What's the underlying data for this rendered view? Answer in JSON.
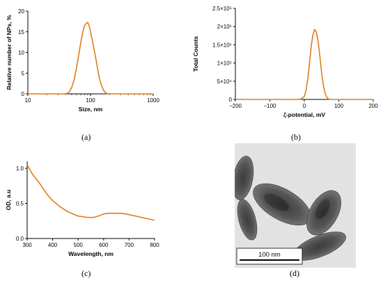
{
  "chart_data": [
    {
      "type": "line",
      "panel": "a",
      "caption": "(a)",
      "xlabel": "Size, nm",
      "ylabel": "Relative number of NPs, %",
      "xscale": "log",
      "xlim": [
        10,
        1000
      ],
      "ylim": [
        0,
        20
      ],
      "xticks": [
        "10",
        "100",
        "1000"
      ],
      "yticks": [
        "0",
        "5",
        "10",
        "15",
        "20"
      ],
      "color": "#e07b1c",
      "x": [
        10,
        30,
        40,
        45,
        50,
        55,
        60,
        65,
        70,
        75,
        80,
        85,
        90,
        95,
        100,
        110,
        120,
        130,
        140,
        150,
        160,
        170,
        180,
        200,
        300,
        1000
      ],
      "y": [
        0,
        0,
        0,
        0.3,
        1.5,
        3.5,
        6.5,
        9.5,
        12.5,
        14.8,
        16.5,
        17,
        17.3,
        16.5,
        15,
        12,
        9,
        6,
        3.5,
        2,
        1,
        0.4,
        0.1,
        0,
        0,
        0
      ]
    },
    {
      "type": "line",
      "panel": "b",
      "caption": "(b)",
      "xlabel": "ζ-potential, mV",
      "ylabel": "Total Counts",
      "xlim": [
        -200,
        200
      ],
      "ylim": [
        0,
        250000
      ],
      "xticks": [
        "−200",
        "−100",
        "0",
        "100",
        "200"
      ],
      "yticks": [
        "0",
        "5×10⁴",
        "1×10⁵",
        "1.5×10⁵",
        "2×10⁵",
        "2.5×10⁵"
      ],
      "color": "#e07b1c",
      "x": [
        -200,
        -20,
        -10,
        0,
        5,
        10,
        15,
        20,
        25,
        30,
        35,
        40,
        45,
        50,
        55,
        60,
        65,
        70,
        80,
        200
      ],
      "y": [
        0,
        0,
        1000,
        8000,
        25000,
        55000,
        100000,
        145000,
        178000,
        192000,
        185000,
        160000,
        120000,
        75000,
        40000,
        18000,
        6000,
        1000,
        0,
        0
      ]
    },
    {
      "type": "line",
      "panel": "c",
      "caption": "(c)",
      "xlabel": "Wavelength, nm",
      "ylabel": "OD, a.u",
      "xlim": [
        300,
        800
      ],
      "ylim": [
        0,
        1.1
      ],
      "xticks": [
        "300",
        "400",
        "500",
        "600",
        "700",
        "800"
      ],
      "yticks": [
        "0.0",
        "0.5",
        "1.0"
      ],
      "color": "#e07b1c",
      "x": [
        300,
        320,
        350,
        380,
        400,
        430,
        460,
        500,
        540,
        560,
        580,
        600,
        620,
        640,
        670,
        700,
        750,
        800
      ],
      "y": [
        1.05,
        0.92,
        0.78,
        0.62,
        0.54,
        0.45,
        0.38,
        0.32,
        0.3,
        0.3,
        0.32,
        0.35,
        0.36,
        0.36,
        0.36,
        0.34,
        0.3,
        0.26
      ]
    }
  ],
  "panel_d": {
    "caption": "(d)",
    "scale_bar": "100 nm"
  }
}
